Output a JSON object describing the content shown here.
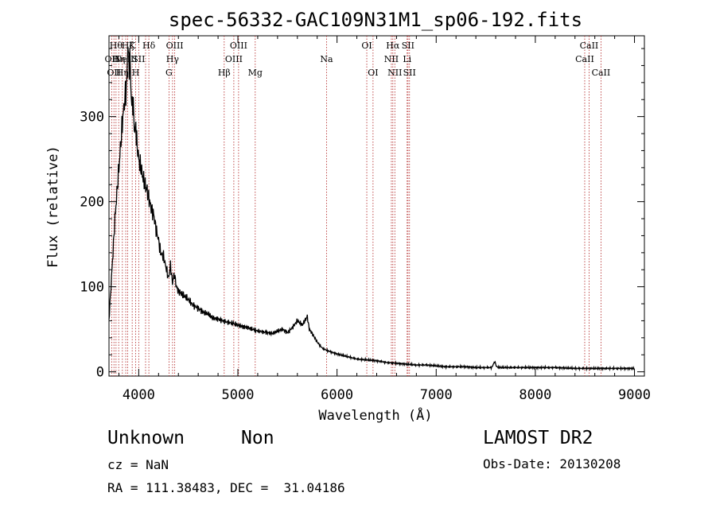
{
  "chart_data": {
    "type": "line",
    "title": "spec-56332-GAC109N31M1_sp06-192.fits",
    "xlabel": "Wavelength (Å)",
    "ylabel": "Flux (relative)",
    "xlim": [
      3700,
      9100
    ],
    "ylim": [
      -5,
      395
    ],
    "xticks": [
      4000,
      5000,
      6000,
      7000,
      8000,
      9000
    ],
    "yticks": [
      0,
      100,
      200,
      300
    ],
    "series": [
      {
        "x": [
          3700,
          3720,
          3740,
          3760,
          3780,
          3800,
          3820,
          3840,
          3860,
          3880,
          3890,
          3900,
          3910,
          3920,
          3930,
          3940,
          3950,
          3960,
          3970,
          3980,
          3990,
          4000,
          4020,
          4040,
          4060,
          4080,
          4100,
          4120,
          4150,
          4180,
          4200,
          4220,
          4250,
          4280,
          4300,
          4320,
          4340,
          4360,
          4380,
          4400,
          4450,
          4500,
          4550,
          4600,
          4650,
          4700,
          4750,
          4800,
          4850,
          4900,
          4950,
          5000,
          5050,
          5100,
          5150,
          5200,
          5250,
          5300,
          5350,
          5400,
          5450,
          5500,
          5550,
          5600,
          5650,
          5700,
          5720,
          5750,
          5800,
          5850,
          5900,
          5950,
          6000,
          6100,
          6200,
          6300,
          6400,
          6500,
          6600,
          6700,
          6800,
          6900,
          7000,
          7100,
          7200,
          7300,
          7400,
          7500,
          7560,
          7590,
          7610,
          7640,
          7700,
          7800,
          7900,
          8000,
          8200,
          8400,
          8600,
          8800,
          9000
        ],
        "y": [
          60,
          100,
          140,
          180,
          210,
          240,
          270,
          300,
          320,
          340,
          390,
          360,
          370,
          340,
          310,
          320,
          300,
          280,
          290,
          270,
          260,
          250,
          240,
          230,
          220,
          215,
          205,
          195,
          185,
          165,
          155,
          140,
          135,
          120,
          110,
          125,
          105,
          115,
          100,
          95,
          90,
          85,
          78,
          75,
          70,
          68,
          63,
          62,
          60,
          58,
          57,
          55,
          53,
          52,
          50,
          48,
          47,
          46,
          45,
          48,
          50,
          46,
          52,
          60,
          55,
          65,
          50,
          45,
          35,
          28,
          25,
          23,
          21,
          18,
          15,
          14,
          13,
          11,
          10,
          9,
          8,
          8,
          7,
          6,
          6,
          6,
          5,
          5,
          5,
          12,
          6,
          5,
          5,
          5,
          5,
          5,
          5,
          4,
          4,
          4,
          4
        ]
      }
    ],
    "lines": [
      {
        "x": 3727,
        "label": "OII",
        "row": 1
      },
      {
        "x": 3750,
        "label": "OII",
        "row": 2
      },
      {
        "x": 3771,
        "label": "Hθ",
        "row": 0
      },
      {
        "x": 3798,
        "label": "Hη",
        "row": 1
      },
      {
        "x": 3835,
        "label": "Hη",
        "row": 2
      },
      {
        "x": 3869,
        "label": "NeIII",
        "row": 1
      },
      {
        "x": 3889,
        "label": "Hζ",
        "row": 0
      },
      {
        "x": 3934,
        "label": "K",
        "row": 0
      },
      {
        "x": 3969,
        "label": "H",
        "row": 2
      },
      {
        "x": 4000,
        "label": "SII",
        "row": 1
      },
      {
        "x": 4069,
        "label": "",
        "row": 1
      },
      {
        "x": 4102,
        "label": "Hδ",
        "row": 0
      },
      {
        "x": 4305,
        "label": "G",
        "row": 2
      },
      {
        "x": 4341,
        "label": "Hγ",
        "row": 1
      },
      {
        "x": 4363,
        "label": "OIII",
        "row": 0
      },
      {
        "x": 4862,
        "label": "Hβ",
        "row": 2
      },
      {
        "x": 4959,
        "label": "OIII",
        "row": 1
      },
      {
        "x": 5007,
        "label": "OIII",
        "row": 0
      },
      {
        "x": 5175,
        "label": "Mg",
        "row": 2
      },
      {
        "x": 5894,
        "label": "Na",
        "row": 1
      },
      {
        "x": 6300,
        "label": "OI",
        "row": 0
      },
      {
        "x": 6363,
        "label": "OI",
        "row": 2
      },
      {
        "x": 6548,
        "label": "NII",
        "row": 1
      },
      {
        "x": 6563,
        "label": "Hα",
        "row": 0
      },
      {
        "x": 6583,
        "label": "NII",
        "row": 2
      },
      {
        "x": 6707,
        "label": "Li",
        "row": 1
      },
      {
        "x": 6716,
        "label": "SII",
        "row": 0
      },
      {
        "x": 6731,
        "label": "SII",
        "row": 2
      },
      {
        "x": 8498,
        "label": "CaII",
        "row": 1
      },
      {
        "x": 8542,
        "label": "CaII",
        "row": 0
      },
      {
        "x": 8662,
        "label": "CaII",
        "row": 2
      }
    ]
  },
  "info": {
    "class": "Unknown",
    "subclass": "Non",
    "cz": "cz = NaN",
    "coords": "RA = 111.38483, DEC =  31.04186",
    "survey": "LAMOST DR2",
    "obsdate": "Obs-Date: 20130208"
  }
}
